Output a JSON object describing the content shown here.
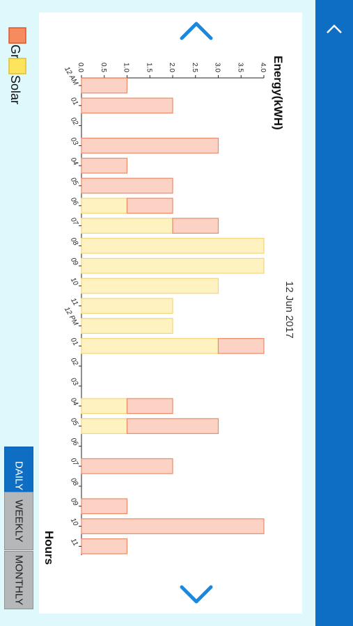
{
  "chart_data": {
    "type": "bar",
    "stacked": true,
    "orientation": "horizontal",
    "ylabel": "Energy(kWH)",
    "xlabel": "Hours",
    "ylim": [
      0,
      4
    ],
    "yticks": [
      "0.0",
      "0.5",
      "1.0",
      "1.5",
      "2.0",
      "2.5",
      "3.0",
      "3.5",
      "4.0"
    ],
    "categories": [
      "12 AM",
      "01",
      "02",
      "03",
      "04",
      "05",
      "06",
      "07",
      "08",
      "09",
      "10",
      "11",
      "12 PM",
      "01",
      "02",
      "03",
      "04",
      "05",
      "06",
      "07",
      "08",
      "09",
      "10",
      "11"
    ],
    "series": [
      {
        "name": "Solar",
        "color": "#fdf2c0",
        "stroke": "#f5d57a",
        "values": [
          0,
          0,
          0,
          0,
          0,
          0,
          1,
          2,
          4,
          4,
          3,
          2,
          2,
          3,
          0,
          0,
          1,
          1,
          0,
          0,
          0,
          0,
          0,
          0
        ]
      },
      {
        "name": "Grid",
        "color": "#fbd2c4",
        "stroke": "#ec8a68",
        "values": [
          1,
          2,
          0,
          3,
          1,
          2,
          1,
          1,
          0,
          0,
          0,
          0,
          0,
          1,
          0,
          0,
          1,
          2,
          0,
          2,
          0,
          1,
          4,
          1
        ]
      }
    ],
    "legend": [
      "Grid",
      "Solar"
    ],
    "legend_position": "top-left"
  },
  "date_label": "12 Jun 2017",
  "tabs": [
    {
      "label": "DAILY",
      "active": true
    },
    {
      "label": "WEEKLY",
      "active": false
    },
    {
      "label": "MONTHLY",
      "active": false
    }
  ],
  "legend_colors": {
    "grid": "#f58b5e",
    "solar": "#fde45d"
  },
  "icons": {
    "prev": "chevron-up-icon",
    "next": "chevron-down-icon",
    "collapse": "chevron-up-icon"
  },
  "accent": "#1c88dc"
}
